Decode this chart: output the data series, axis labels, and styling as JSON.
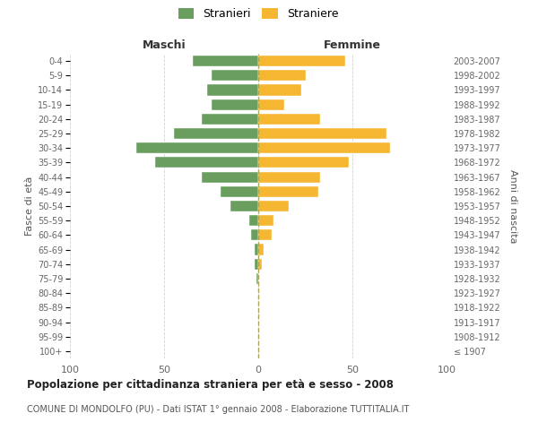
{
  "age_groups": [
    "100+",
    "95-99",
    "90-94",
    "85-89",
    "80-84",
    "75-79",
    "70-74",
    "65-69",
    "60-64",
    "55-59",
    "50-54",
    "45-49",
    "40-44",
    "35-39",
    "30-34",
    "25-29",
    "20-24",
    "15-19",
    "10-14",
    "5-9",
    "0-4"
  ],
  "birth_years": [
    "≤ 1907",
    "1908-1912",
    "1913-1917",
    "1918-1922",
    "1923-1927",
    "1928-1932",
    "1933-1937",
    "1938-1942",
    "1943-1947",
    "1948-1952",
    "1953-1957",
    "1958-1962",
    "1963-1967",
    "1968-1972",
    "1973-1977",
    "1978-1982",
    "1983-1987",
    "1988-1992",
    "1993-1997",
    "1998-2002",
    "2003-2007"
  ],
  "maschi": [
    0,
    0,
    0,
    0,
    0,
    1,
    2,
    2,
    4,
    5,
    15,
    20,
    30,
    55,
    65,
    45,
    30,
    25,
    27,
    25,
    35
  ],
  "femmine": [
    0,
    0,
    0,
    0,
    0,
    0,
    2,
    3,
    7,
    8,
    16,
    32,
    33,
    48,
    70,
    68,
    33,
    14,
    23,
    25,
    46
  ],
  "color_maschi": "#6a9e5f",
  "color_femmine": "#f5b731",
  "title": "Popolazione per cittadinanza straniera per età e sesso - 2008",
  "subtitle": "COMUNE DI MONDOLFO (PU) - Dati ISTAT 1° gennaio 2008 - Elaborazione TUTTITALIA.IT",
  "xlabel_left": "Maschi",
  "xlabel_right": "Femmine",
  "ylabel_left": "Fasce di età",
  "ylabel_right": "Anni di nascita",
  "xlim": 100,
  "legend_stranieri": "Stranieri",
  "legend_straniere": "Straniere",
  "background_color": "#ffffff",
  "grid_color": "#cccccc"
}
